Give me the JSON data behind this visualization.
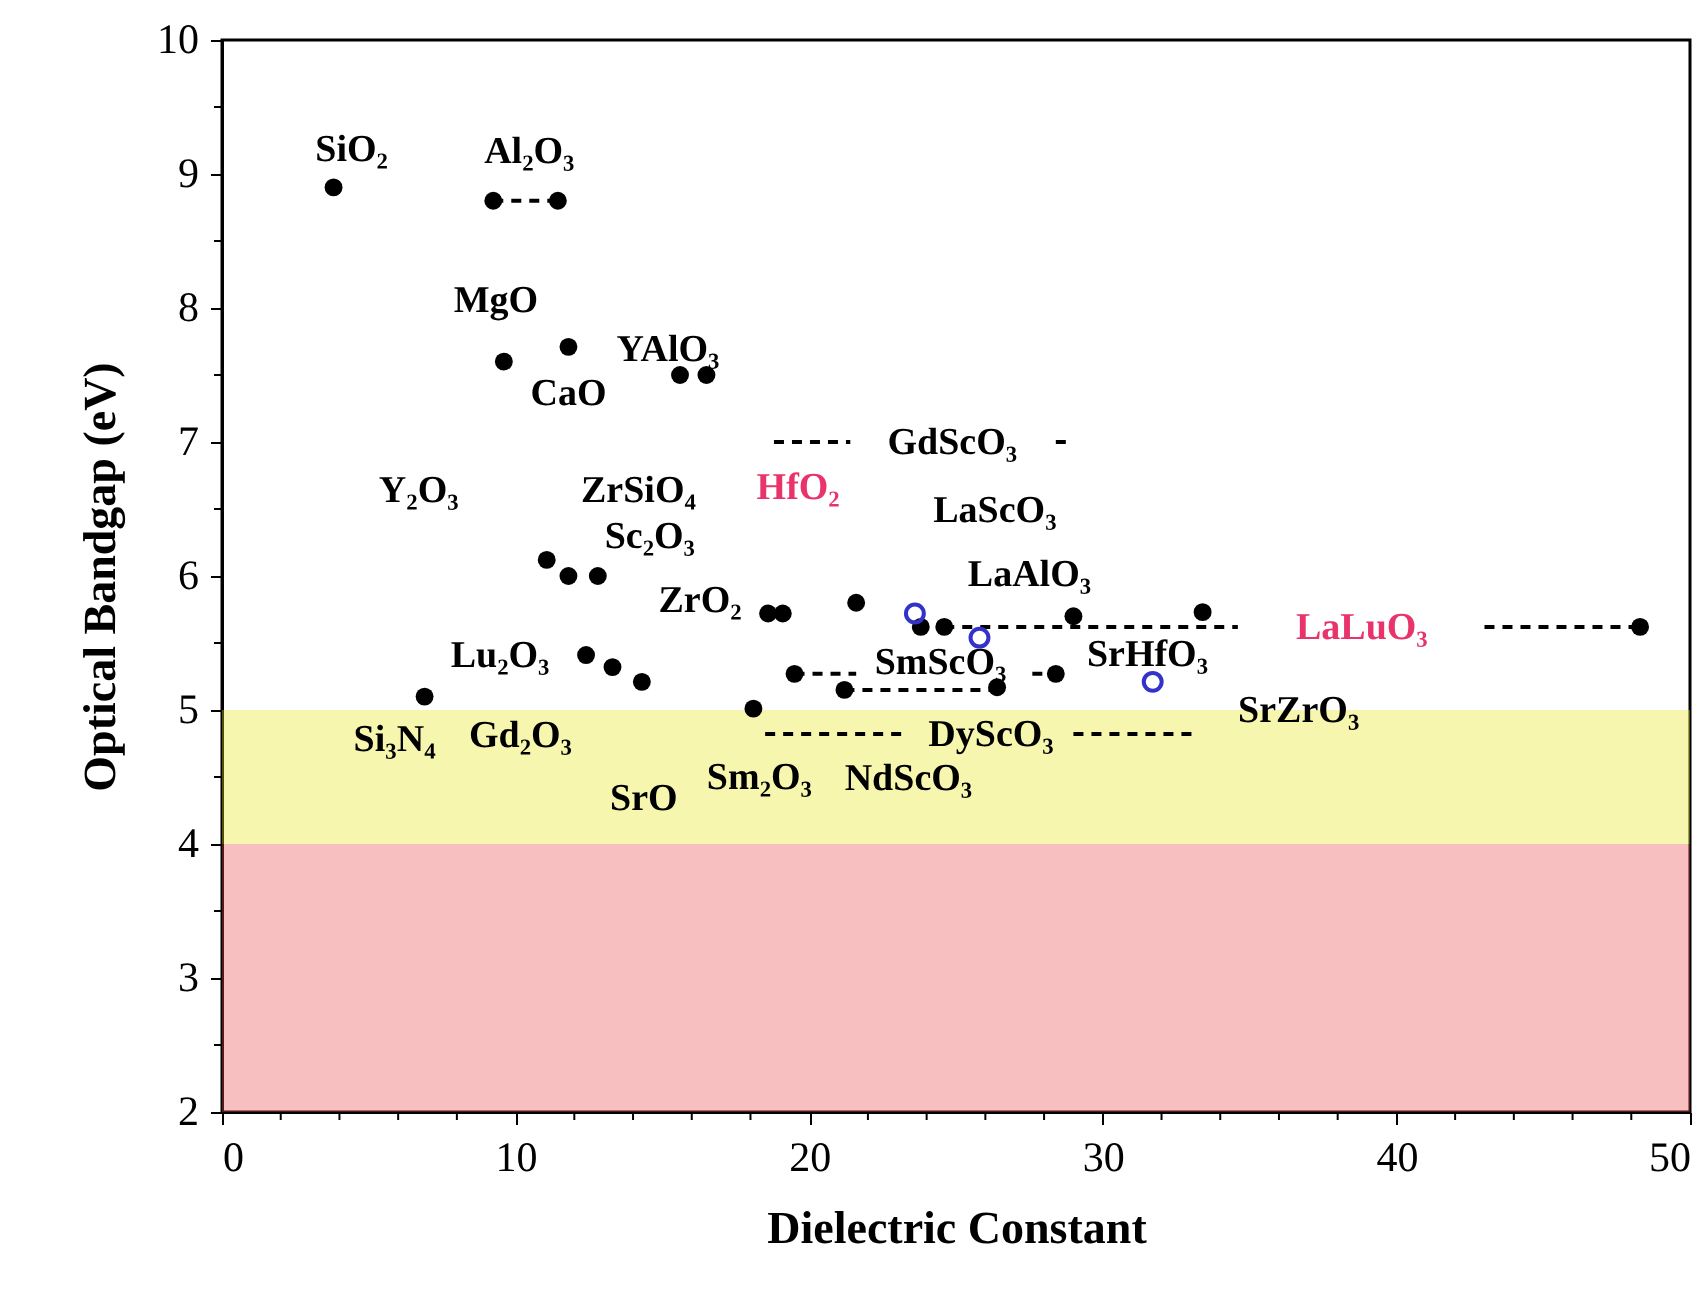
{
  "chart_data": {
    "type": "scatter",
    "xlabel": "Dielectric Constant",
    "ylabel": "Optical Bandgap (eV)",
    "xlim": [
      0,
      50
    ],
    "ylim": [
      2,
      10
    ],
    "xticks": [
      0,
      {
        "value": 2,
        "label": null
      },
      {
        "value": 4,
        "label": null
      },
      {
        "value": 6,
        "label": null
      },
      {
        "value": 8,
        "label": null
      },
      10,
      {
        "value": 12,
        "label": null
      },
      {
        "value": 14,
        "label": null
      },
      {
        "value": 16,
        "label": null
      },
      {
        "value": 18,
        "label": null
      },
      20,
      {
        "value": 22,
        "label": null
      },
      {
        "value": 24,
        "label": null
      },
      {
        "value": 26,
        "label": null
      },
      {
        "value": 28,
        "label": null
      },
      30,
      {
        "value": 32,
        "label": null
      },
      {
        "value": 34,
        "label": null
      },
      {
        "value": 36,
        "label": null
      },
      {
        "value": 38,
        "label": null
      },
      40,
      {
        "value": 42,
        "label": null
      },
      {
        "value": 44,
        "label": null
      },
      {
        "value": 46,
        "label": null
      },
      {
        "value": 48,
        "label": null
      },
      50
    ],
    "yticks": [
      2,
      {
        "value": 2.5,
        "label": null
      },
      3,
      {
        "value": 3.5,
        "label": null
      },
      4,
      {
        "value": 4.5,
        "label": null
      },
      5,
      {
        "value": 5.5,
        "label": null
      },
      6,
      {
        "value": 6.5,
        "label": null
      },
      7,
      {
        "value": 7.5,
        "label": null
      },
      8,
      {
        "value": 8.5,
        "label": null
      },
      9,
      {
        "value": 9.5,
        "label": null
      },
      10
    ],
    "grid": false,
    "bands": [
      {
        "axis": "y",
        "from": 2,
        "to": 4,
        "color": "#e8474a"
      },
      {
        "axis": "y",
        "from": 4,
        "to": 5,
        "color": "#e6e61a"
      }
    ],
    "series": [
      {
        "type": "line",
        "color": "#000000",
        "line_style": "dashed",
        "x": [
          9.24,
          11.44
        ],
        "values": [
          8.8,
          8.8
        ]
      },
      {
        "type": "line",
        "color": "#000000",
        "line_style": "dashed",
        "x": [
          18.8,
          21.4,
          24.9,
          28.4,
          29.0
        ],
        "values": [
          7.0,
          7.0,
          null,
          7.0,
          7.0
        ]
      },
      {
        "type": "line",
        "color": "#000000",
        "line_style": "dashed",
        "x": [
          24.6,
          34.6,
          38.8,
          43.0,
          48.3
        ],
        "values": [
          5.62,
          5.62,
          null,
          5.62,
          5.62
        ]
      },
      {
        "type": "line",
        "color": "#000000",
        "line_style": "dashed",
        "x": [
          19.5,
          21.6,
          24.5,
          27.6,
          28.4
        ],
        "values": [
          5.27,
          5.27,
          null,
          5.27,
          5.27
        ]
      },
      {
        "type": "line",
        "color": "#000000",
        "line_style": "dashed",
        "x": [
          21.2,
          26.4
        ],
        "values": [
          5.15,
          5.15
        ]
      },
      {
        "type": "line",
        "color": "#000000",
        "line_style": "dashed",
        "x": [
          18.5,
          23.4,
          26.2,
          29.0,
          33.1
        ],
        "values": [
          4.82,
          4.82,
          null,
          4.82,
          4.82
        ]
      },
      {
        "color": "#000000",
        "marker": "circle",
        "x": [
          3.8,
          9.24,
          11.44,
          9.6,
          11.8,
          15.6,
          16.5,
          11.06,
          11.8,
          12.8,
          18.6,
          19.1,
          21.6,
          12.4,
          13.3,
          14.3,
          6.9,
          18.1,
          19.5,
          21.2,
          23.8,
          24.6,
          29.0,
          33.4,
          48.3,
          28.4,
          26.4
        ],
        "values": [
          8.9,
          8.8,
          8.8,
          7.6,
          7.71,
          7.5,
          7.5,
          6.12,
          6.0,
          6.0,
          5.72,
          5.72,
          5.8,
          5.41,
          5.32,
          5.21,
          5.1,
          5.01,
          5.27,
          5.15,
          5.62,
          5.62,
          5.7,
          5.73,
          5.62,
          5.27,
          5.17
        ]
      },
      {
        "color": "#3333cc",
        "marker": "circle",
        "x": [
          23.6,
          25.8,
          31.7
        ],
        "values": [
          5.72,
          5.54,
          5.21
        ]
      }
    ],
    "annotations": [
      {
        "text": "SiO₂",
        "x": 3.8,
        "y": 8.9
      },
      {
        "text": "Al₂O₃",
        "x": 9.24,
        "y": 8.8
      },
      {
        "text": "MgO",
        "x": 9.6,
        "y": 7.6
      },
      {
        "text": "CaO",
        "x": 11.8,
        "y": 7.71
      },
      {
        "text": "YAlO₃",
        "x": 15.6,
        "y": 7.5
      },
      {
        "text": "Y₂O₃",
        "x": 11.06,
        "y": 6.12
      },
      {
        "text": "ZrSiO₄",
        "x": 11.8,
        "y": 6.0
      },
      {
        "text": "Sc₂O₃",
        "x": 12.8,
        "y": 6.0
      },
      {
        "text": "ZrO₂",
        "x": 18.6,
        "y": 5.72
      },
      {
        "text": "HfO₂",
        "x": 21.6,
        "y": 5.8
      },
      {
        "text": "GdScO₃",
        "x": 21.4,
        "y": 7.0
      },
      {
        "text": "LaScO₃",
        "x": 23.6,
        "y": 5.72
      },
      {
        "text": "LaAlO₃",
        "x": 29.0,
        "y": 5.7
      },
      {
        "text": "LaLuO₃",
        "x": 34.6,
        "y": 5.62
      },
      {
        "text": "SrHfO₃",
        "x": 25.8,
        "y": 5.54
      },
      {
        "text": "SrZrO₃",
        "x": 31.7,
        "y": 5.21
      },
      {
        "text": "SmScO₃",
        "x": 19.5,
        "y": 5.27
      },
      {
        "text": "DyScO₃",
        "x": 23.4,
        "y": 4.82
      },
      {
        "text": "NdScO₃",
        "x": 21.2,
        "y": 5.15
      },
      {
        "text": "Sm₂O₃",
        "x": 18.1,
        "y": 5.01
      },
      {
        "text": "SrO",
        "x": 14.3,
        "y": 5.21
      },
      {
        "text": "Gd₂O₃",
        "x": 13.3,
        "y": 5.32
      },
      {
        "text": "Si₃N₄",
        "x": 6.9,
        "y": 5.1
      },
      {
        "text": "Lu₂O₃",
        "x": 12.4,
        "y": 5.41
      }
    ]
  }
}
